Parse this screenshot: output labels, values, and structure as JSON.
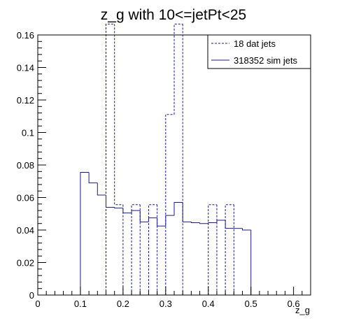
{
  "chart_data": {
    "type": "histogram",
    "title": "z_g with 10<=jetPt<25",
    "xlabel": "z_g",
    "ylabel": "",
    "xlim": [
      0,
      0.64
    ],
    "ylim": [
      0,
      0.16
    ],
    "x_ticks": [
      0,
      0.1,
      0.2,
      0.3,
      0.4,
      0.5,
      0.6
    ],
    "x_tick_labels": [
      "0",
      "0.1",
      "0.2",
      "0.3",
      "0.4",
      "0.5",
      "0.6"
    ],
    "y_ticks": [
      0,
      0.02,
      0.04,
      0.06,
      0.08,
      0.1,
      0.12,
      0.14,
      0.16
    ],
    "y_tick_labels": [
      "0",
      "0.02",
      "0.04",
      "0.06",
      "0.08",
      "0.1",
      "0.12",
      "0.14",
      "0.16"
    ],
    "bin_edges": [
      0.0,
      0.02,
      0.04,
      0.06,
      0.08,
      0.1,
      0.12,
      0.14,
      0.16,
      0.18,
      0.2,
      0.22,
      0.24,
      0.26,
      0.28,
      0.3,
      0.32,
      0.34,
      0.36,
      0.38,
      0.4,
      0.42,
      0.44,
      0.46,
      0.48,
      0.5,
      0.52,
      0.54,
      0.56,
      0.58,
      0.6,
      0.62,
      0.64
    ],
    "grid": false,
    "legend_position": "top-right",
    "series": [
      {
        "name": "18 dat jets",
        "style": "dashed",
        "color": "#1a1a8c",
        "values": [
          0,
          0,
          0,
          0,
          0,
          0,
          0,
          0,
          0.1667,
          0.0556,
          0,
          0.0556,
          0,
          0.0556,
          0,
          0.1111,
          0.1667,
          0,
          0,
          0,
          0.0556,
          0,
          0.0556,
          0,
          0,
          0,
          0,
          0,
          0,
          0,
          0,
          0
        ]
      },
      {
        "name": "318352 sim jets",
        "style": "solid",
        "color": "#1a1a8c",
        "values": [
          0,
          0,
          0,
          0,
          0,
          0.0755,
          0.069,
          0.0615,
          0.054,
          0.0535,
          0.0505,
          0.052,
          0.045,
          0.0475,
          0.0425,
          0.049,
          0.057,
          0.045,
          0.0445,
          0.044,
          0.0445,
          0.046,
          0.041,
          0.041,
          0.04,
          0,
          0,
          0,
          0,
          0,
          0,
          0
        ]
      }
    ]
  }
}
